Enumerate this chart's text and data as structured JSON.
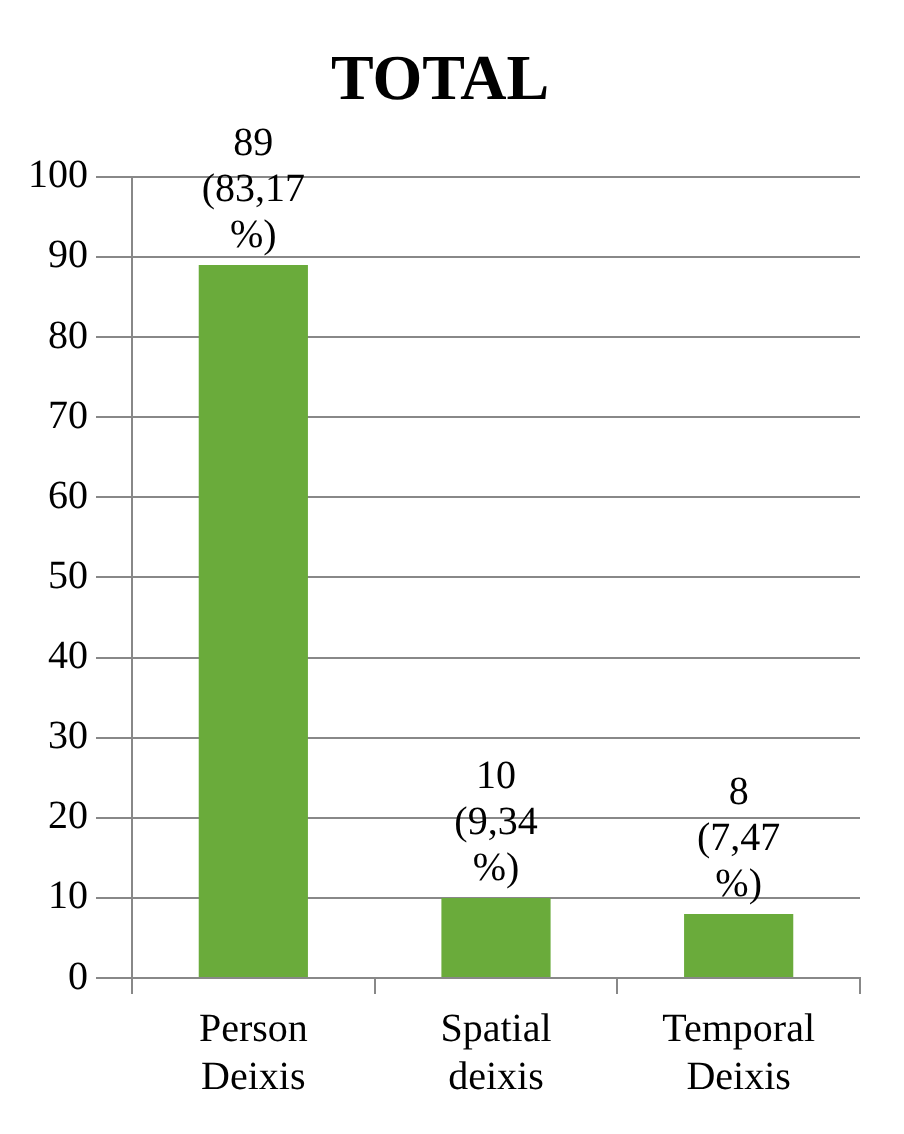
{
  "chart_data": {
    "type": "bar",
    "title": "TOTAL",
    "categories": [
      "Person Deixis",
      "Spatial deixis",
      "Temporal Deixis"
    ],
    "values": [
      89,
      10,
      8
    ],
    "color": "#6aab3b",
    "value_labels": [
      "89 (83,17 %)",
      "10 (9,34 %)",
      "8 (7,47 %)"
    ],
    "ylim": [
      0,
      100
    ],
    "yticks": [
      0,
      10,
      20,
      30,
      40,
      50,
      60,
      70,
      80,
      90,
      100
    ],
    "grid": "y",
    "legend": false
  }
}
